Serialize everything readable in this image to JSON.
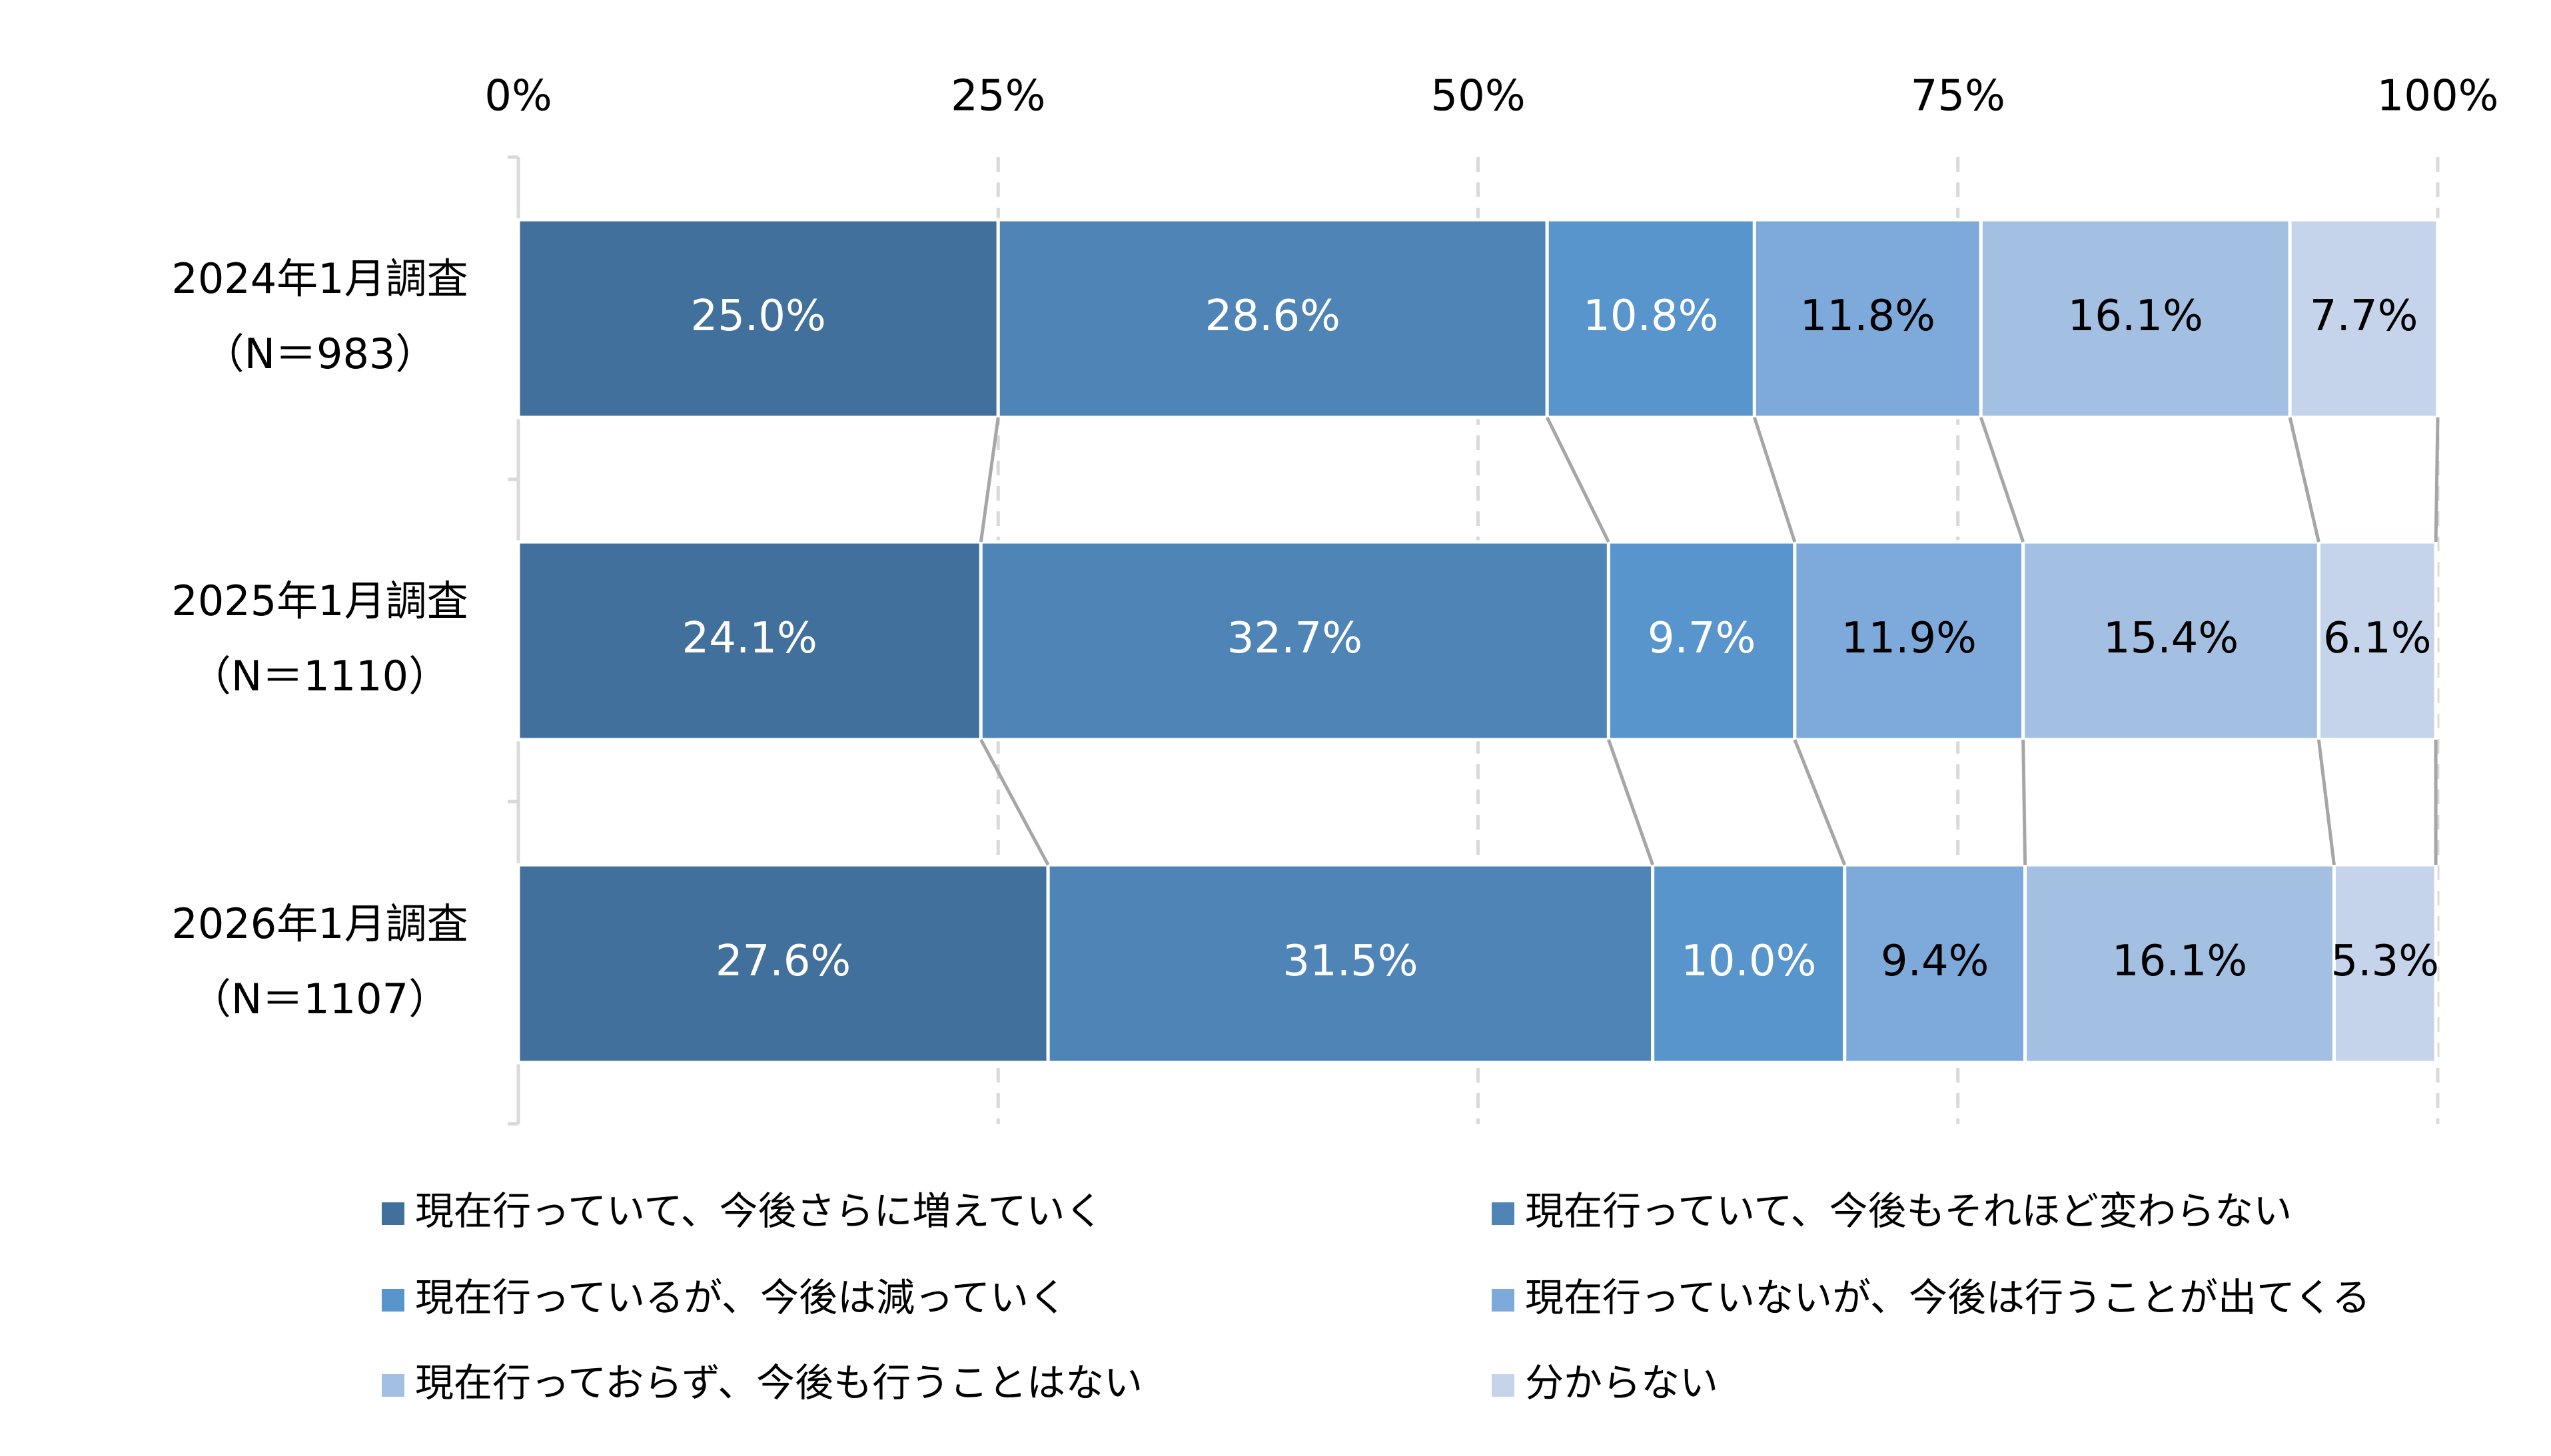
{
  "chart_data": {
    "type": "stacked-bar-horizontal-percent",
    "categories": [
      [
        "2024年1月調査",
        "（N＝983）"
      ],
      [
        "2025年1月調査",
        "（N＝1110）"
      ],
      [
        "2026年1月調査",
        "（N＝1107）"
      ]
    ],
    "series": [
      {
        "name": "現在行っていて、今後さらに増えていく",
        "color": "#41709c",
        "values": [
          25.0,
          24.1,
          27.6
        ],
        "value_labels": [
          "25.0%",
          "24.1%",
          "27.6%"
        ]
      },
      {
        "name": "現在行っていて、今後もそれほど変わらない",
        "color": "#4f84b6",
        "values": [
          28.6,
          32.7,
          31.5
        ],
        "value_labels": [
          "28.6%",
          "32.7%",
          "31.5%"
        ]
      },
      {
        "name": "現在行っているが、今後は減っていく",
        "color": "#5895cc",
        "values": [
          10.8,
          9.7,
          10.0
        ],
        "value_labels": [
          "10.8%",
          "9.7%",
          "10.0%"
        ]
      },
      {
        "name": "現在行っていないが、今後は行うことが出てくる",
        "color": "#7eaadb",
        "values": [
          11.8,
          11.9,
          9.4
        ],
        "value_labels": [
          "11.8%",
          "11.9%",
          "9.4%"
        ]
      },
      {
        "name": "現在行っておらず、今後も行うことはない",
        "color": "#a3c0e3",
        "values": [
          16.1,
          15.4,
          16.1
        ],
        "value_labels": [
          "16.1%",
          "15.4%",
          "16.1%"
        ]
      },
      {
        "name": "分からない",
        "color": "#c5d4eb",
        "values": [
          7.7,
          6.1,
          5.3
        ],
        "value_labels": [
          "7.7%",
          "6.1%",
          "5.3%"
        ]
      }
    ],
    "xlim": [
      0,
      100
    ],
    "xticks": [
      {
        "value": 0,
        "label": "0%"
      },
      {
        "value": 25,
        "label": "25%"
      },
      {
        "value": 50,
        "label": "50%"
      },
      {
        "value": 75,
        "label": "75%"
      },
      {
        "value": 100,
        "label": "100%"
      }
    ],
    "grid": true,
    "legend": "bottom"
  }
}
